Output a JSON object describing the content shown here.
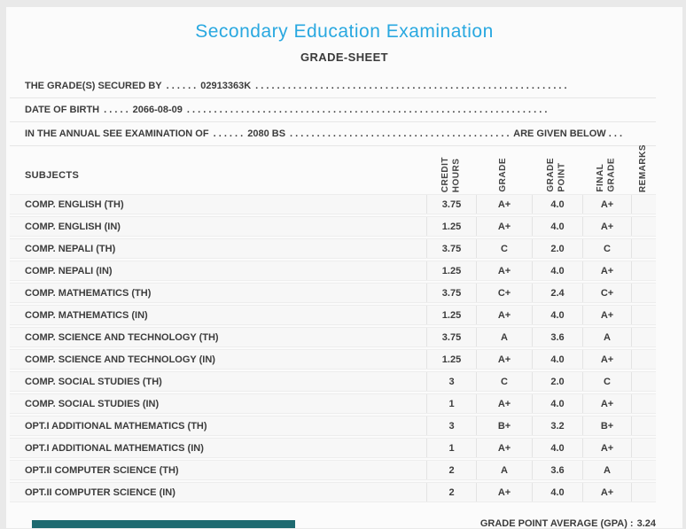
{
  "header": {
    "title": "Secondary Education Examination",
    "subtitle": "GRADE-SHEET"
  },
  "info_lines": [
    {
      "prefix": "THE GRADE(S) SECURED BY",
      "dots_before": ". . . . . .",
      "value": "02913363K",
      "dots_after": ". . . . . . . . . . . . . . . . . . . . . . . . . . . . . . . . . . . . . . . . . . . . . . . . . . . . . . . . . . . . . . . . . . . . . . . .",
      "suffix": ""
    },
    {
      "prefix": "DATE OF BIRTH",
      "dots_before": ". . . . .",
      "value": "2066-08-09",
      "dots_after": ". . . . . . . . . . . . . . . . . . . . . . . . . . . . . . . . . . . . . . . . . . . . . . . . . . . . . . . . . . . . . . . . . . . . . . . .",
      "suffix": ""
    },
    {
      "prefix": "IN THE ANNUAL SEE EXAMINATION OF",
      "dots_before": ". . . . . .",
      "value": "2080 BS",
      "dots_after": ". . . . . . . . . . . . . . . . . . . . . . . . . . . . . . . . . . . . . . . . . . . . . . . . . . . . . . . . . . . . . . . . . . . . . . . .",
      "suffix": "ARE GIVEN BELOW . . ."
    }
  ],
  "table": {
    "subjects_header": "SUBJECTS",
    "columns": [
      "CREDIT\nHOURS",
      "GRADE",
      "GRADE\nPOINT",
      "FINAL\nGRADE",
      "REMARKS"
    ],
    "rows": [
      {
        "subject": "COMP. ENGLISH (TH)",
        "credit_hours": "3.75",
        "grade": "A+",
        "grade_point": "4.0",
        "final_grade": "A+",
        "remarks": ""
      },
      {
        "subject": "COMP. ENGLISH (IN)",
        "credit_hours": "1.25",
        "grade": "A+",
        "grade_point": "4.0",
        "final_grade": "A+",
        "remarks": ""
      },
      {
        "subject": "COMP. NEPALI (TH)",
        "credit_hours": "3.75",
        "grade": "C",
        "grade_point": "2.0",
        "final_grade": "C",
        "remarks": ""
      },
      {
        "subject": "COMP. NEPALI (IN)",
        "credit_hours": "1.25",
        "grade": "A+",
        "grade_point": "4.0",
        "final_grade": "A+",
        "remarks": ""
      },
      {
        "subject": "COMP. MATHEMATICS (TH)",
        "credit_hours": "3.75",
        "grade": "C+",
        "grade_point": "2.4",
        "final_grade": "C+",
        "remarks": ""
      },
      {
        "subject": "COMP. MATHEMATICS (IN)",
        "credit_hours": "1.25",
        "grade": "A+",
        "grade_point": "4.0",
        "final_grade": "A+",
        "remarks": ""
      },
      {
        "subject": "COMP. SCIENCE AND TECHNOLOGY (TH)",
        "credit_hours": "3.75",
        "grade": "A",
        "grade_point": "3.6",
        "final_grade": "A",
        "remarks": ""
      },
      {
        "subject": "COMP. SCIENCE AND TECHNOLOGY (IN)",
        "credit_hours": "1.25",
        "grade": "A+",
        "grade_point": "4.0",
        "final_grade": "A+",
        "remarks": ""
      },
      {
        "subject": "COMP. SOCIAL STUDIES (TH)",
        "credit_hours": "3",
        "grade": "C",
        "grade_point": "2.0",
        "final_grade": "C",
        "remarks": ""
      },
      {
        "subject": "COMP. SOCIAL STUDIES (IN)",
        "credit_hours": "1",
        "grade": "A+",
        "grade_point": "4.0",
        "final_grade": "A+",
        "remarks": ""
      },
      {
        "subject": "OPT.I ADDITIONAL MATHEMATICS (TH)",
        "credit_hours": "3",
        "grade": "B+",
        "grade_point": "3.2",
        "final_grade": "B+",
        "remarks": ""
      },
      {
        "subject": "OPT.I ADDITIONAL MATHEMATICS (IN)",
        "credit_hours": "1",
        "grade": "A+",
        "grade_point": "4.0",
        "final_grade": "A+",
        "remarks": ""
      },
      {
        "subject": "OPT.II COMPUTER SCIENCE (TH)",
        "credit_hours": "2",
        "grade": "A",
        "grade_point": "3.6",
        "final_grade": "A",
        "remarks": ""
      },
      {
        "subject": "OPT.II COMPUTER SCIENCE (IN)",
        "credit_hours": "2",
        "grade": "A+",
        "grade_point": "4.0",
        "final_grade": "A+",
        "remarks": ""
      }
    ]
  },
  "footer": {
    "gpa_label": "GRADE POINT AVERAGE (GPA) :",
    "gpa_value": "3.24"
  },
  "colors": {
    "title_blue": "#29a8e0",
    "teal_bar": "#1e6a70"
  }
}
